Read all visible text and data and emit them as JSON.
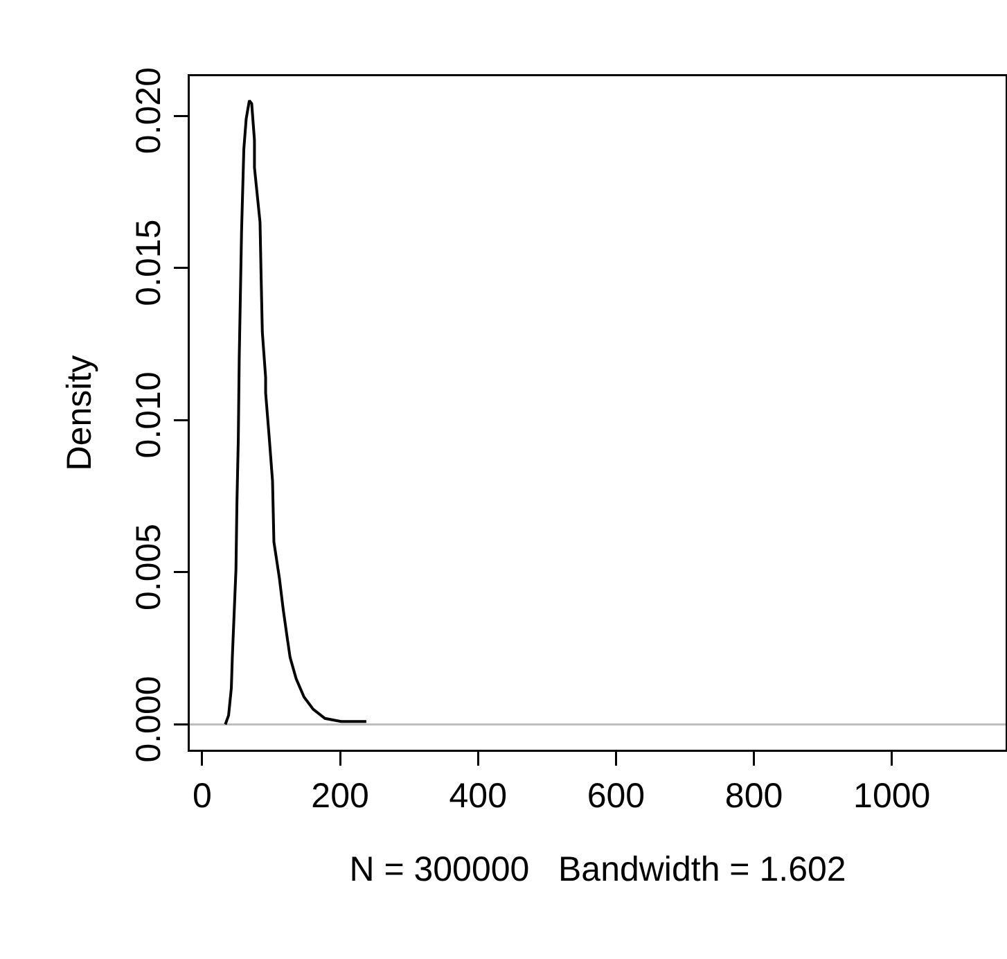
{
  "chart_data": {
    "type": "line",
    "xlabel": "N = 300000   Bandwidth = 1.602",
    "ylabel": "Density",
    "x": [
      33.6,
      38.3,
      42.3,
      43.7,
      49,
      50.4,
      52.4,
      53.7,
      57.1,
      60.4,
      63.8,
      68.4,
      71.8,
      75.8,
      75.8,
      83.9,
      85.2,
      87.2,
      92,
      92,
      97.3,
      102,
      104,
      112,
      117.4,
      123,
      127.5,
      136.3,
      147.7,
      161,
      178,
      201.3,
      238
    ],
    "series": [
      {
        "color": "#000000",
        "values": [
          0,
          0.0003,
          0.0012,
          0.0022,
          0.0051,
          0.0073,
          0.0094,
          0.012,
          0.0162,
          0.0189,
          0.0199,
          0.0205,
          0.0204,
          0.0192,
          0.0183,
          0.0165,
          0.015,
          0.0129,
          0.0114,
          0.0109,
          0.0094,
          0.008,
          0.006,
          0.0048,
          0.0038,
          0.0029,
          0.0022,
          0.0015,
          0.0009,
          0.0005,
          0.0002,
          0.0001,
          0.0001
        ]
      }
    ],
    "xlim": [
      -18,
      1165
    ],
    "xticks": [
      0,
      200,
      400,
      600,
      800,
      1000
    ],
    "ylim": [
      -0.00083,
      0.0213
    ],
    "yticks": [
      {
        "value": 0,
        "label": "0.000"
      },
      {
        "value": 0.005,
        "label": "0.005"
      },
      {
        "value": 0.01,
        "label": "0.010"
      },
      {
        "value": 0.015,
        "label": "0.015"
      },
      {
        "value": 0.02,
        "label": "0.020"
      }
    ],
    "ref_lines": [
      {
        "axis": "y",
        "value": 0,
        "color": "#bebebe"
      }
    ],
    "grid": false,
    "marker": "none",
    "line_style": "solid"
  }
}
